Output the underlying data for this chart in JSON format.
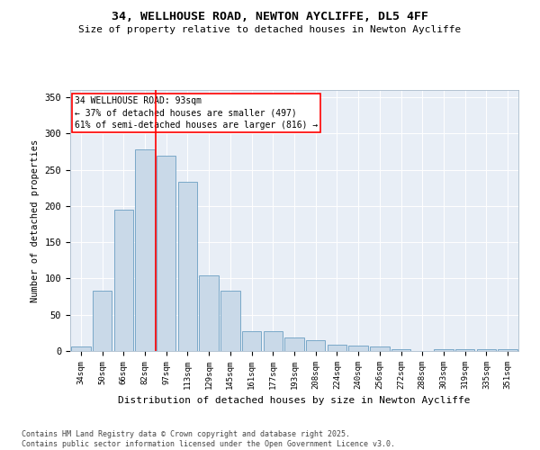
{
  "title": "34, WELLHOUSE ROAD, NEWTON AYCLIFFE, DL5 4FF",
  "subtitle": "Size of property relative to detached houses in Newton Aycliffe",
  "xlabel": "Distribution of detached houses by size in Newton Aycliffe",
  "ylabel": "Number of detached properties",
  "bar_labels": [
    "34sqm",
    "50sqm",
    "66sqm",
    "82sqm",
    "97sqm",
    "113sqm",
    "129sqm",
    "145sqm",
    "161sqm",
    "177sqm",
    "193sqm",
    "208sqm",
    "224sqm",
    "240sqm",
    "256sqm",
    "272sqm",
    "288sqm",
    "303sqm",
    "319sqm",
    "335sqm",
    "351sqm"
  ],
  "bar_values": [
    6,
    83,
    195,
    278,
    270,
    234,
    104,
    83,
    27,
    27,
    19,
    15,
    9,
    8,
    6,
    2,
    0,
    3,
    2,
    2,
    2
  ],
  "bar_color": "#c9d9e8",
  "bar_edge_color": "#7aa8c8",
  "vline_index": 3.5,
  "annotation_text": "34 WELLHOUSE ROAD: 93sqm\n← 37% of detached houses are smaller (497)\n61% of semi-detached houses are larger (816) →",
  "annotation_box_color": "white",
  "annotation_box_edge_color": "red",
  "vline_color": "red",
  "ylim": [
    0,
    360
  ],
  "yticks": [
    0,
    50,
    100,
    150,
    200,
    250,
    300,
    350
  ],
  "bg_color": "#e8eef6",
  "footer_line1": "Contains HM Land Registry data © Crown copyright and database right 2025.",
  "footer_line2": "Contains public sector information licensed under the Open Government Licence v3.0."
}
